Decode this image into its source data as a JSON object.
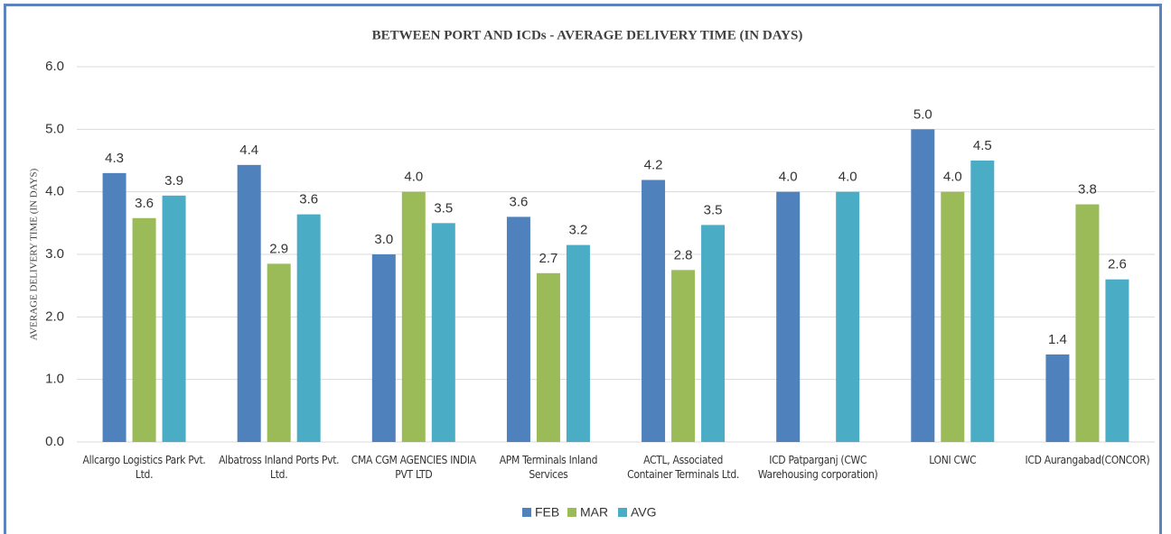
{
  "chart_data": {
    "type": "bar",
    "title": "BETWEEN PORT AND ICDs - AVERAGE DELIVERY TIME (IN DAYS)",
    "y_label": "AVERAGE DELIVERY TIME (IN DAYS)",
    "categories": [
      "Allcargo Logistics Park Pvt. Ltd.",
      "Albatross Inland Ports Pvt. Ltd.",
      "CMA CGM AGENCIES INDIA PVT LTD",
      "APM Terminals Inland Services",
      "ACTL, Associated Container Terminals Ltd.",
      "ICD Patparganj (CWC Warehousing corporation)",
      "LONI CWC",
      "ICD Aurangabad(CONCOR)"
    ],
    "series": [
      {
        "name": "FEB",
        "color": "#4f81bd",
        "values": [
          4.3,
          4.43,
          3.0,
          3.6,
          4.19,
          4.0,
          5.0,
          1.4
        ],
        "value_labels": [
          "4.3",
          "4.4",
          "3.0",
          "3.6",
          "4.2",
          "4.0",
          "5.0",
          "1.4"
        ]
      },
      {
        "name": "MAR",
        "color": "#9bbb59",
        "values": [
          3.58,
          2.85,
          4.0,
          2.7,
          2.75,
          null,
          4.0,
          3.8
        ],
        "value_labels": [
          "3.6",
          "2.9",
          "4.0",
          "2.7",
          "2.8",
          null,
          "4.0",
          "3.8"
        ]
      },
      {
        "name": "AVG",
        "color": "#4bacc6",
        "values": [
          3.94,
          3.64,
          3.5,
          3.15,
          3.47,
          4.0,
          4.5,
          2.6
        ],
        "value_labels": [
          "3.9",
          "3.6",
          "3.5",
          "3.2",
          "3.5",
          "4.0",
          "4.5",
          "2.6"
        ]
      }
    ],
    "ylim": [
      0,
      6
    ],
    "yticks": [
      {
        "value": 0,
        "label": "0.0"
      },
      {
        "value": 1,
        "label": "1.0"
      },
      {
        "value": 2,
        "label": "2.0"
      },
      {
        "value": 3,
        "label": "3.0"
      },
      {
        "value": 4,
        "label": "4.0"
      },
      {
        "value": 5,
        "label": "5.0"
      },
      {
        "value": 6,
        "label": "6.0"
      }
    ],
    "grid": true,
    "legend": "bottom"
  }
}
